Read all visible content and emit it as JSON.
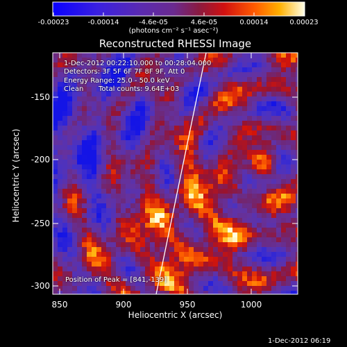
{
  "colorbar": {
    "ticks": [
      "-0.00023",
      "-0.00014",
      "-4.6e-05",
      "4.6e-05",
      "0.00014",
      "0.00023"
    ],
    "unit_label": "(photons cm⁻² s⁻¹ asec⁻²)"
  },
  "image": {
    "title": "Reconstructed RHESSI Image",
    "time_range": "1-Dec-2012 00:22:10.000 to 00:28:04.000",
    "detectors": "Detectors: 3F 5F 6F 7F 8F 9F, Att 0",
    "energy_range": "Energy Range: 25.0 - 50.0 keV",
    "clean": "Clean",
    "total_counts": "Total counts: 9.64E+03",
    "peak_position": "Position of Peak = [841,-139]"
  },
  "axes": {
    "xlabel": "Heliocentric X (arcsec)",
    "ylabel": "Heliocentric Y (arcsec)",
    "xticks": [
      "850",
      "900",
      "950",
      "1000"
    ],
    "yticks": [
      "-150",
      "-200",
      "-250",
      "-300"
    ]
  },
  "footer": {
    "timestamp": "1-Dec-2012 06:19"
  },
  "colors": {
    "negative": "#0000ff",
    "neutral": "#6a2aa8",
    "positive": "#ff3300",
    "max": "#ffffe0"
  }
}
